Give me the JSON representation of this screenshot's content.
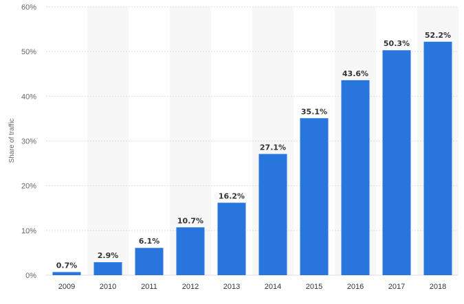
{
  "chart_data": {
    "type": "bar",
    "title": "",
    "xlabel": "",
    "ylabel": "Share of traffic",
    "categories": [
      "2009",
      "2010",
      "2011",
      "2012",
      "2013",
      "2014",
      "2015",
      "2016",
      "2017",
      "2018"
    ],
    "values": [
      0.7,
      2.9,
      6.1,
      10.7,
      16.2,
      27.1,
      35.1,
      43.6,
      50.3,
      52.2
    ],
    "data_labels": [
      "0.7%",
      "2.9%",
      "6.1%",
      "10.7%",
      "16.2%",
      "27.1%",
      "35.1%",
      "43.6%",
      "50.3%",
      "52.2%"
    ],
    "ylim": [
      0,
      60
    ],
    "yticks": [
      0,
      10,
      20,
      30,
      40,
      50,
      60
    ],
    "ytick_labels": [
      "0%",
      "10%",
      "20%",
      "30%",
      "40%",
      "50%",
      "60%"
    ],
    "grid": true,
    "bar_color": "#2876DD",
    "band_color": "#F7F7F7",
    "grid_color": "#DDDDDD"
  }
}
